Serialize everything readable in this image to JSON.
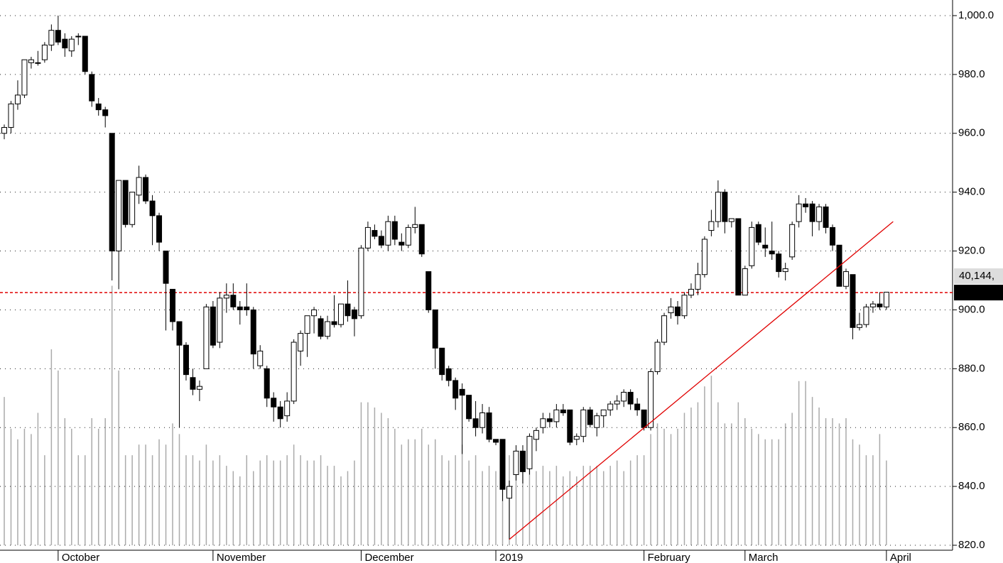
{
  "chart_data": {
    "type": "candlestick",
    "categories": [
      null,
      null,
      null,
      null,
      null,
      null,
      null,
      null,
      "October",
      null,
      null,
      null,
      null,
      null,
      null,
      null,
      null,
      null,
      null,
      null,
      null,
      null,
      null,
      null,
      null,
      null,
      null,
      null,
      null,
      null,
      null,
      "November",
      null,
      null,
      null,
      null,
      null,
      null,
      null,
      null,
      null,
      null,
      null,
      null,
      null,
      null,
      null,
      null,
      null,
      null,
      null,
      null,
      null,
      "December",
      null,
      null,
      null,
      null,
      null,
      null,
      null,
      null,
      null,
      null,
      null,
      null,
      null,
      null,
      null,
      null,
      null,
      null,
      null,
      "2019",
      null,
      null,
      null,
      null,
      null,
      null,
      null,
      null,
      null,
      null,
      null,
      null,
      null,
      null,
      null,
      null,
      null,
      null,
      null,
      null,
      null,
      "February",
      null,
      null,
      null,
      null,
      null,
      null,
      null,
      null,
      null,
      null,
      null,
      null,
      null,
      null,
      "March",
      null,
      null,
      null,
      null,
      null,
      null,
      null,
      null,
      null,
      null,
      null,
      null,
      null,
      null,
      null,
      null,
      null,
      null,
      null,
      null,
      "April"
    ],
    "open": [
      960,
      962,
      970,
      973,
      984,
      984,
      985,
      990,
      995,
      992,
      988,
      993,
      993,
      980,
      970,
      968,
      960,
      920,
      944,
      929,
      939,
      945,
      937,
      932,
      920,
      907,
      896,
      888,
      877,
      873,
      880,
      901,
      889,
      904,
      905,
      901,
      901,
      900,
      881,
      880,
      870,
      867,
      864,
      869,
      886,
      892,
      898,
      897,
      891,
      896,
      895,
      902,
      900,
      898,
      921,
      927,
      925,
      922,
      930,
      923,
      922,
      928,
      929,
      913,
      900,
      887,
      880,
      876,
      873,
      871,
      863,
      860,
      865,
      856,
      856,
      836,
      844,
      852,
      846,
      856,
      860,
      863,
      862,
      866,
      866,
      856,
      857,
      866,
      860,
      864,
      866,
      868,
      869,
      872,
      868,
      866,
      860,
      879,
      889,
      899,
      901,
      898,
      905,
      907,
      912,
      927,
      930,
      940,
      930,
      931,
      905,
      915,
      929,
      922,
      920,
      919,
      913,
      918,
      930,
      936,
      936,
      930,
      935,
      928,
      922,
      908,
      912,
      894,
      895,
      901,
      902,
      901
    ],
    "high": [
      963,
      971,
      978,
      985,
      986,
      988,
      991,
      997,
      1000,
      994,
      993,
      994,
      993,
      981,
      972,
      969,
      960,
      944,
      944,
      940,
      949,
      946,
      939,
      933,
      920,
      907,
      896,
      889,
      880,
      876,
      902,
      903,
      906,
      909,
      909,
      903,
      909,
      901,
      888,
      881,
      872,
      869,
      872,
      890,
      893,
      898,
      901,
      898,
      898,
      905,
      902,
      910,
      901,
      922,
      930,
      929,
      927,
      932,
      932,
      926,
      929,
      935,
      929,
      913,
      900,
      887,
      881,
      877,
      875,
      871,
      869,
      868,
      867,
      856,
      856,
      842,
      854,
      854,
      858,
      860,
      865,
      865,
      868,
      868,
      866,
      858,
      867,
      867,
      865,
      866,
      869,
      871,
      873,
      873,
      870,
      866,
      880,
      890,
      899,
      904,
      903,
      906,
      909,
      916,
      925,
      934,
      944,
      941,
      931,
      931,
      915,
      930,
      930,
      928,
      930,
      920,
      916,
      930,
      939,
      938,
      937,
      936,
      936,
      929,
      922,
      914,
      912,
      899,
      902,
      903,
      906,
      906
    ],
    "low": [
      958,
      960,
      968,
      972,
      982,
      983,
      984,
      988,
      990,
      986,
      986,
      990,
      980,
      969,
      966,
      962,
      910,
      907,
      928,
      928,
      936,
      936,
      922,
      920,
      893,
      893,
      860,
      876,
      871,
      869,
      880,
      887,
      887,
      899,
      900,
      895,
      898,
      880,
      880,
      867,
      862,
      860,
      862,
      868,
      881,
      884,
      892,
      890,
      890,
      894,
      894,
      896,
      891,
      897,
      920,
      924,
      921,
      920,
      922,
      920,
      921,
      926,
      918,
      899,
      880,
      876,
      874,
      866,
      851,
      862,
      857,
      858,
      855,
      854,
      835,
      822,
      842,
      841,
      844,
      852,
      858,
      860,
      860,
      864,
      854,
      854,
      855,
      860,
      857,
      860,
      864,
      866,
      867,
      866,
      864,
      859,
      859,
      878,
      888,
      897,
      895,
      897,
      904,
      905,
      911,
      925,
      928,
      926,
      928,
      905,
      905,
      914,
      922,
      918,
      917,
      911,
      910,
      917,
      928,
      933,
      925,
      927,
      926,
      920,
      908,
      907,
      890,
      893,
      894,
      899,
      900,
      900
    ],
    "close": [
      962,
      970,
      973,
      985,
      985,
      984,
      990,
      995,
      991,
      989,
      992,
      993,
      981,
      971,
      968,
      966,
      920,
      944,
      929,
      940,
      945,
      937,
      932,
      923,
      909,
      896,
      888,
      878,
      873,
      874,
      901,
      888,
      904,
      905,
      901,
      900,
      900,
      885,
      886,
      870,
      867,
      863,
      869,
      889,
      892,
      898,
      900,
      891,
      896,
      895,
      902,
      898,
      897,
      921,
      928,
      925,
      922,
      930,
      924,
      922,
      928,
      929,
      919,
      900,
      887,
      878,
      876,
      870,
      871,
      863,
      860,
      865,
      856,
      855,
      839,
      840,
      852,
      845,
      857,
      859,
      863,
      862,
      866,
      865,
      855,
      857,
      866,
      861,
      864,
      866,
      868,
      869,
      872,
      868,
      866,
      860,
      879,
      889,
      898,
      901,
      898,
      905,
      907,
      912,
      924,
      930,
      940,
      930,
      931,
      905,
      914,
      928,
      923,
      921,
      919,
      913,
      914,
      929,
      936,
      935,
      930,
      935,
      928,
      922,
      908,
      913,
      894,
      895,
      901,
      902,
      901,
      906
    ],
    "volume": [
      28,
      22,
      20,
      22,
      21,
      25,
      17,
      37,
      33,
      24,
      22,
      17,
      17,
      24,
      22,
      24,
      49,
      33,
      17,
      17,
      19,
      19,
      17,
      20,
      19,
      23,
      21,
      17,
      17,
      16,
      19,
      16,
      17,
      15,
      14,
      13,
      17,
      14,
      16,
      17,
      16,
      16,
      17,
      19,
      17,
      16,
      16,
      17,
      15,
      15,
      13,
      14,
      16,
      27,
      27,
      26,
      25,
      24,
      22,
      19,
      20,
      20,
      22,
      19,
      20,
      17,
      16,
      17,
      19,
      16,
      17,
      14,
      15,
      14,
      16,
      17,
      14,
      14,
      15,
      14,
      15,
      14,
      15,
      13,
      14,
      13,
      15,
      15,
      15,
      14,
      15,
      16,
      14,
      16,
      17,
      17,
      21,
      23,
      22,
      21,
      22,
      25,
      26,
      27,
      30,
      32,
      27,
      23,
      23,
      27,
      24,
      22,
      21,
      20,
      20,
      20,
      23,
      25,
      31,
      31,
      28,
      26,
      24,
      24,
      23,
      24,
      20,
      19,
      17,
      17,
      21,
      16
    ],
    "volume_lim": [
      0,
      100
    ],
    "up_color": "#ffffff",
    "down_color": "#000000",
    "volume_color": "#aaaaaa",
    "ylim": [
      820,
      1000
    ],
    "yticks": [
      {
        "value": 820,
        "label": "820.0"
      },
      {
        "value": 840,
        "label": "840.0"
      },
      {
        "value": 860,
        "label": "860.0"
      },
      {
        "value": 880,
        "label": "880.0"
      },
      {
        "value": 900,
        "label": "900.0"
      },
      {
        "value": 920,
        "label": "920.0"
      },
      {
        "value": 940,
        "label": "940.0"
      },
      {
        "value": 960,
        "label": "960.0"
      },
      {
        "value": 980,
        "label": "980.0"
      },
      {
        "value": 1000,
        "label": "1,000.0"
      }
    ],
    "grid": true,
    "last_price": 905.87,
    "last_price_color": "#e00000",
    "volume_label": "40,144,",
    "trendline": {
      "x": [
        75,
        132
      ],
      "y": [
        822,
        930
      ],
      "color": "#e00000"
    }
  }
}
